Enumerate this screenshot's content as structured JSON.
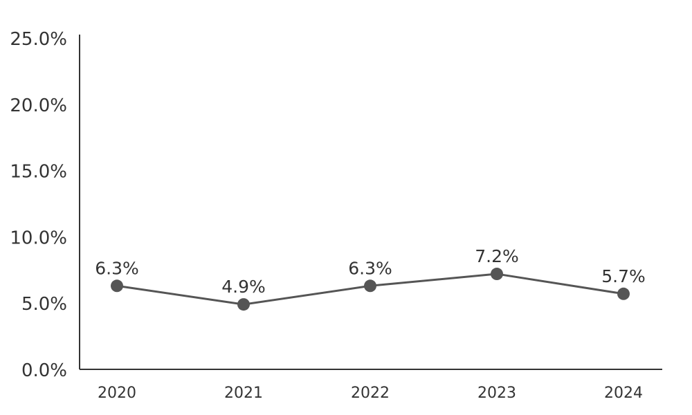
{
  "chart_data": {
    "type": "line",
    "categories": [
      "2020",
      "2021",
      "2022",
      "2023",
      "2024"
    ],
    "series": [
      {
        "values": [
          6.3,
          4.9,
          6.3,
          7.2,
          5.7
        ],
        "data_labels": [
          "6.3%",
          "4.9%",
          "6.3%",
          "7.2%",
          "5.7%"
        ],
        "color": "#555555"
      }
    ],
    "y_ticks": [
      {
        "value": 0,
        "label": "0.0%"
      },
      {
        "value": 5,
        "label": "5.0%"
      },
      {
        "value": 10,
        "label": "10.0%"
      },
      {
        "value": 15,
        "label": "15.0%"
      },
      {
        "value": 20,
        "label": "20.0%"
      },
      {
        "value": 25,
        "label": "25.0%"
      }
    ],
    "ylim": [
      0,
      25
    ],
    "grid": false,
    "legend": "none",
    "title": "",
    "xlabel": "",
    "ylabel": "",
    "axis_color": "#333333"
  }
}
